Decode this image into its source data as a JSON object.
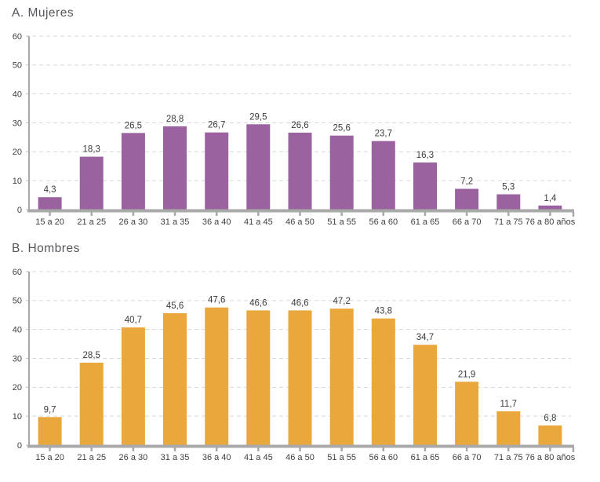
{
  "chart_data": [
    {
      "type": "bar",
      "panel": "A",
      "title": "A. Mujeres",
      "categories": [
        "15 a 20",
        "21 a 25",
        "26 a 30",
        "31 a 35",
        "36 a 40",
        "41 a 45",
        "46 a 50",
        "51 a 55",
        "56 a 60",
        "61 a 65",
        "66 a 70",
        "71 a 75",
        "76 a 80 años"
      ],
      "values": [
        4.3,
        18.3,
        26.5,
        28.8,
        26.7,
        29.5,
        26.6,
        25.6,
        23.7,
        16.3,
        7.2,
        5.3,
        1.4
      ],
      "data_labels": [
        "4,3",
        "18,3",
        "26,5",
        "28,8",
        "26,7",
        "29,5",
        "26,6",
        "25,6",
        "23,7",
        "16,3",
        "7,2",
        "5,3",
        "1,4"
      ],
      "bar_color": "#9a63a0",
      "xlabel": "",
      "ylabel": "",
      "ylim": [
        0,
        60
      ],
      "yticks": [
        0,
        10,
        20,
        30,
        40,
        50,
        60
      ],
      "grid": true,
      "grid_style": "dashed",
      "legend": "none"
    },
    {
      "type": "bar",
      "panel": "B",
      "title": "B. Hombres",
      "categories": [
        "15 a 20",
        "21 a 25",
        "26 a 30",
        "31 a 35",
        "36 a 40",
        "41 a 45",
        "46 a 50",
        "51 a 55",
        "56 a 60",
        "61 a 65",
        "66 a 70",
        "71 a 75",
        "76 a 80 años"
      ],
      "values": [
        9.7,
        28.5,
        40.7,
        45.6,
        47.6,
        46.6,
        46.6,
        47.2,
        43.8,
        34.7,
        21.9,
        11.7,
        6.8
      ],
      "data_labels": [
        "9,7",
        "28,5",
        "40,7",
        "45,6",
        "47,6",
        "46,6",
        "46,6",
        "47,2",
        "43,8",
        "34,7",
        "21,9",
        "11,7",
        "6,8"
      ],
      "bar_color": "#eaa83c",
      "xlabel": "",
      "ylabel": "",
      "ylim": [
        0,
        60
      ],
      "yticks": [
        0,
        10,
        20,
        30,
        40,
        50,
        60
      ],
      "grid": true,
      "grid_style": "dashed",
      "legend": "none"
    }
  ],
  "colors": {
    "mujeres_bar": "#9a63a0",
    "hombres_bar": "#eaa83c",
    "axis": "#a9a9a9",
    "gridline": "#d8d8d8",
    "label_text": "#3f3f3f",
    "title_text": "#54565b"
  }
}
